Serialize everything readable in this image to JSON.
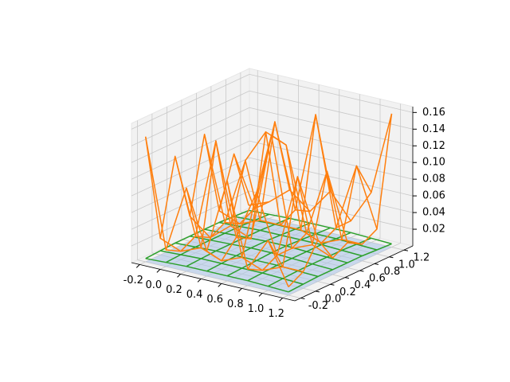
{
  "chart_data": {
    "type": "wireframe3d",
    "xlim": [
      -0.28,
      1.32
    ],
    "ylim": [
      -0.28,
      1.32
    ],
    "zlim": [
      0,
      0.167
    ],
    "xticks": [
      -0.2,
      {
        "value": 0,
        "label": "0.0"
      },
      0.2,
      0.4,
      0.6,
      0.8,
      {
        "value": 1,
        "label": "1.0"
      },
      1.2
    ],
    "yticks": [
      -0.2,
      {
        "value": 0,
        "label": "0.0"
      },
      0.2,
      0.4,
      0.6,
      0.8,
      {
        "value": 1,
        "label": "1.0"
      },
      1.2
    ],
    "zticks": [
      0.02,
      0.04,
      0.06,
      0.08,
      {
        "value": 0.1,
        "label": "0.10"
      },
      0.12,
      0.14,
      0.16
    ],
    "grid": true,
    "x": [
      -0.2,
      0,
      0.2,
      0.4,
      0.6,
      0.8,
      1.0,
      1.2
    ],
    "y": [
      -0.2,
      0,
      0.2,
      0.4,
      0.6,
      0.8,
      1.0,
      1.2
    ],
    "surfaces": [
      {
        "color": "#aec7e8",
        "style": "fill",
        "z": [
          [
            0.0,
            0.0,
            0.0,
            0.0,
            0.0,
            0.0,
            0.0,
            0.0
          ],
          [
            0.0,
            0.0,
            0.0,
            0.0,
            0.0,
            0.0,
            0.0,
            0.0
          ],
          [
            0.0,
            0.0,
            0.0,
            0.0,
            0.0,
            0.0,
            0.0,
            0.0
          ],
          [
            0.0,
            0.0,
            0.0,
            0.0,
            0.0,
            0.0,
            0.0,
            0.0
          ],
          [
            0.0,
            0.0,
            0.0,
            0.0,
            0.0,
            0.0,
            0.0,
            0.0
          ],
          [
            0.0,
            0.0,
            0.0,
            0.0,
            0.0,
            0.0,
            0.0,
            0.0
          ],
          [
            0.0,
            0.0,
            0.0,
            0.0,
            0.0,
            0.0,
            0.0,
            0.0
          ],
          [
            0.0,
            0.0,
            0.0,
            0.0,
            0.0,
            0.0,
            0.0,
            0.0
          ]
        ]
      },
      {
        "color": "#2ca02c",
        "style": "wire",
        "z": [
          [
            0.004,
            0.005,
            0.006,
            0.006,
            0.006,
            0.006,
            0.005,
            0.004
          ],
          [
            0.005,
            0.006,
            0.007,
            0.007,
            0.007,
            0.007,
            0.006,
            0.005
          ],
          [
            0.006,
            0.007,
            0.008,
            0.008,
            0.008,
            0.008,
            0.007,
            0.006
          ],
          [
            0.006,
            0.007,
            0.008,
            0.009,
            0.009,
            0.008,
            0.007,
            0.006
          ],
          [
            0.006,
            0.007,
            0.008,
            0.009,
            0.009,
            0.008,
            0.007,
            0.006
          ],
          [
            0.006,
            0.007,
            0.008,
            0.008,
            0.008,
            0.008,
            0.007,
            0.006
          ],
          [
            0.005,
            0.006,
            0.007,
            0.007,
            0.007,
            0.007,
            0.006,
            0.005
          ],
          [
            0.004,
            0.005,
            0.006,
            0.006,
            0.006,
            0.006,
            0.005,
            0.004
          ]
        ]
      },
      {
        "color": "#ff7f0e",
        "style": "wire",
        "z": [
          [
            0.15,
            0.02,
            0.1,
            0.03,
            0.12,
            0.02,
            0.06,
            0.01
          ],
          [
            0.02,
            0.01,
            0.02,
            0.01,
            0.02,
            0.01,
            0.02,
            0.02
          ],
          [
            0.11,
            0.02,
            0.14,
            0.03,
            0.09,
            0.02,
            0.12,
            0.05
          ],
          [
            0.03,
            0.01,
            0.03,
            0.02,
            0.15,
            0.02,
            0.03,
            0.02
          ],
          [
            0.12,
            0.02,
            0.1,
            0.14,
            0.13,
            0.03,
            0.11,
            0.03
          ],
          [
            0.02,
            0.01,
            0.02,
            0.02,
            0.02,
            0.01,
            0.02,
            0.02
          ],
          [
            0.08,
            0.02,
            0.13,
            0.03,
            0.15,
            0.02,
            0.1,
            0.03
          ],
          [
            0.01,
            0.02,
            0.04,
            0.02,
            0.05,
            0.02,
            0.06,
            0.16
          ]
        ]
      }
    ]
  }
}
